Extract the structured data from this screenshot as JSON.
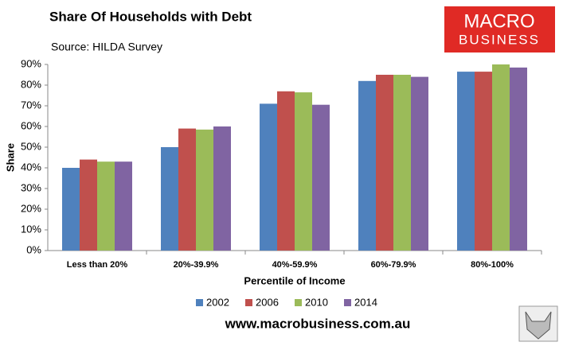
{
  "chart_data": {
    "type": "grouped-bar",
    "title": "Share Of Households with Debt",
    "subtitle": "Source: HILDA Survey",
    "y_label": "Share",
    "x_label": "Percentile of Income",
    "footer": "www.macrobusiness.com.au",
    "logo": {
      "line1": "MACRO",
      "line2": "BUSINESS"
    },
    "categories": [
      "Less than 20%",
      "20%-39.9%",
      "40%-59.9%",
      "60%-79.9%",
      "80%-100%"
    ],
    "series": [
      {
        "name": "2002",
        "color": "#4f81bd",
        "values": [
          40,
          50,
          71,
          82,
          86.5
        ]
      },
      {
        "name": "2006",
        "color": "#c0504d",
        "values": [
          44,
          59,
          77,
          85,
          86.5
        ]
      },
      {
        "name": "2010",
        "color": "#9bbb59",
        "values": [
          43,
          58.5,
          76.5,
          85,
          90
        ]
      },
      {
        "name": "2014",
        "color": "#8064a2",
        "values": [
          43,
          60,
          70.5,
          84,
          88.5
        ]
      }
    ],
    "ylim": [
      0,
      90
    ],
    "yticks": [
      {
        "value": 0,
        "label": "0%"
      },
      {
        "value": 10,
        "label": "10%"
      },
      {
        "value": 20,
        "label": "20%"
      },
      {
        "value": 30,
        "label": "30%"
      },
      {
        "value": 40,
        "label": "40%"
      },
      {
        "value": 50,
        "label": "50%"
      },
      {
        "value": 60,
        "label": "60%"
      },
      {
        "value": 70,
        "label": "70%"
      },
      {
        "value": 80,
        "label": "80%"
      },
      {
        "value": 90,
        "label": "90%"
      }
    ],
    "grid": false,
    "legend": "bottom"
  }
}
